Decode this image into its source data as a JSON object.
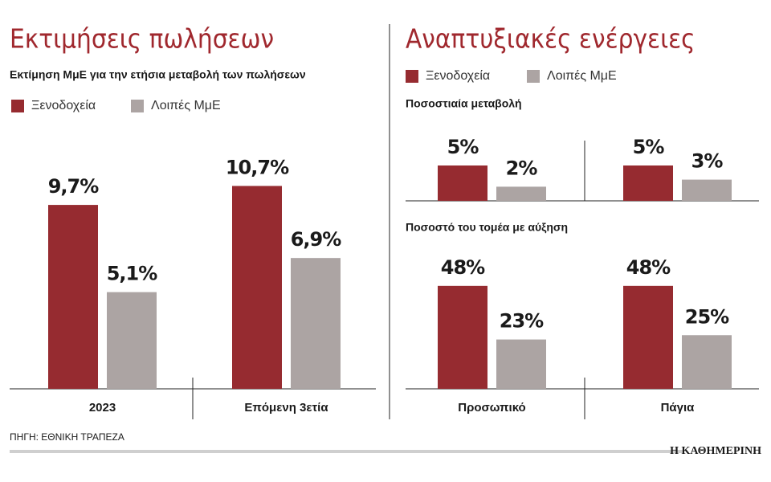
{
  "chart_data": [
    {
      "type": "bar",
      "title": "Εκτιμήσεις πωλήσεων",
      "subtitle": "Εκτίμηση ΜμΕ για την ετήσια μεταβολή των πωλήσεων",
      "categories": [
        "2023",
        "Επόμενη 3ετία"
      ],
      "series": [
        {
          "name": "Ξενοδοχεία",
          "color": "#962b30",
          "values": [
            9.7,
            10.7
          ],
          "value_labels": [
            "9,7%",
            "10,7%"
          ]
        },
        {
          "name": "Λοιπές ΜμΕ",
          "color": "#aca4a3",
          "values": [
            5.1,
            6.9
          ],
          "value_labels": [
            "5,1%",
            "6,9%"
          ]
        }
      ]
    },
    {
      "type": "bar",
      "title": "Αναπτυξιακές ενέργειες",
      "subtitle": "Ποσοστιαία μεταβολή",
      "categories": [
        null,
        null
      ],
      "series": [
        {
          "name": "Ξενοδοχεία",
          "color": "#962b30",
          "values": [
            5,
            5
          ],
          "value_labels": [
            "5%",
            "5%"
          ]
        },
        {
          "name": "Λοιπές ΜμΕ",
          "color": "#aca4a3",
          "values": [
            2,
            3
          ],
          "value_labels": [
            "2%",
            "3%"
          ]
        }
      ]
    },
    {
      "type": "bar",
      "subtitle": "Ποσοστό του τομέα με αύξηση",
      "categories": [
        "Προσωπικό",
        "Πάγια"
      ],
      "series": [
        {
          "color": "#962b30",
          "values": [
            48,
            48
          ],
          "value_labels": [
            "48%",
            "48%"
          ]
        },
        {
          "color": "#aca4a3",
          "values": [
            23,
            25
          ],
          "value_labels": [
            "23%",
            "25%"
          ]
        }
      ]
    }
  ],
  "footer": {
    "source": "ΠΗΓΗ: ΕΘΝΙΚΗ ΤΡΑΠΕΖΑ",
    "brand": "Η ΚΑΘΗΜΕΡΙΝΗ"
  }
}
